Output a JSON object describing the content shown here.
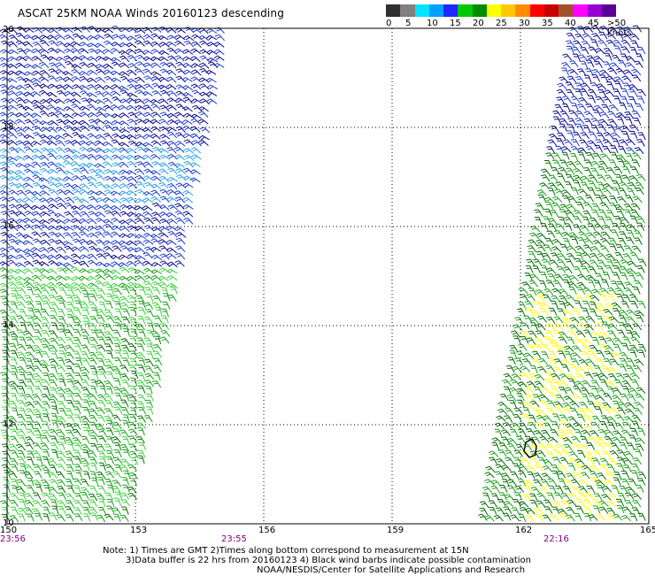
{
  "title": "ASCAT 25KM NOAA Winds 20160123 descending",
  "legend": {
    "colors": [
      "#303030",
      "#808080",
      "#00e5ff",
      "#00a0ff",
      "#1e28ff",
      "#00c800",
      "#008c00",
      "#ffff00",
      "#ffc800",
      "#ff8c00",
      "#ff0000",
      "#c80000",
      "#a0522d",
      "#ff00ff",
      "#9400d3",
      "#5a0096"
    ],
    "labels": [
      "0",
      "5",
      "10",
      "15",
      "20",
      "25",
      "30",
      "35",
      "40",
      "45",
      ">50 knots"
    ]
  },
  "axes": {
    "lon_ticks": [
      "150",
      "153",
      "156",
      "159",
      "162",
      "165"
    ],
    "lat_ticks": [
      "20",
      "18",
      "16",
      "14",
      "12",
      "10"
    ],
    "lon_range": [
      150,
      165
    ],
    "lat_range": [
      10,
      20
    ]
  },
  "pass_times": [
    "23:56",
    "23:55",
    "22:16"
  ],
  "notes": {
    "line1": "Note: 1) Times are GMT 2)Times along bottom correspond to measurement at 15N",
    "line2": "3)Data buffer is 22 hrs from 20160123 4) Black wind barbs indicate possible contamination",
    "line3": "NOAA/NESDIS/Center for Satellite Applications and Research"
  },
  "swaths": [
    {
      "name": "west-pass",
      "lon_min": 150.0,
      "lat_range": [
        10,
        20
      ]
    },
    {
      "name": "east-pass",
      "lon_max": 165.0,
      "lat_range": [
        10,
        20
      ]
    }
  ],
  "wind_colors": {
    "blue_light": "#28a0e6",
    "blue": "#1e3cc8",
    "navy": "#0a0a8c",
    "green_light": "#3cd23c",
    "green": "#18a018",
    "green_dark": "#066e06",
    "yellow": "#ffff00",
    "contamination": "#000000"
  }
}
